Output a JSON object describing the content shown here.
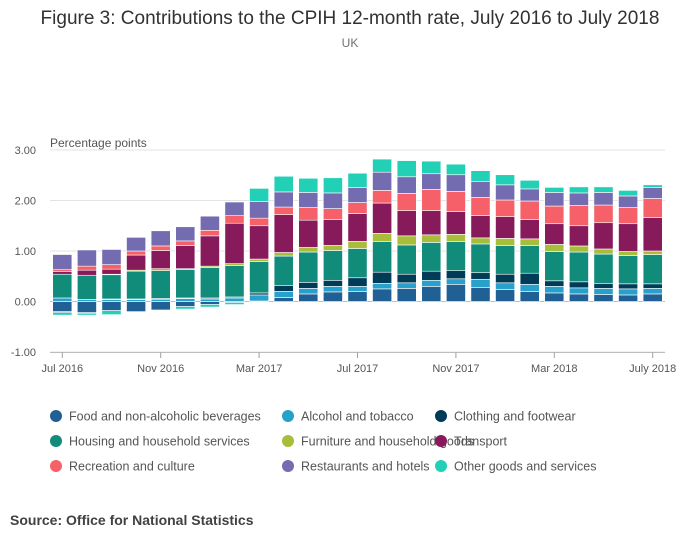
{
  "figure": {
    "title": "Figure 3: Contributions to the CPIH 12-month rate, July 2016 to July 2018",
    "subtitle": "UK",
    "source": "Source: Office for National Statistics"
  },
  "chart_data": {
    "type": "bar",
    "stacked": true,
    "title": "Figure 3: Contributions to the CPIH 12-month rate, July 2016 to July 2018",
    "subtitle": "UK",
    "ylabel": "Percentage points",
    "ylim": [
      -1.0,
      3.0
    ],
    "yticks": [
      "3.00",
      "2.00",
      "1.00",
      "0.00",
      "-1.00"
    ],
    "ytick_values": [
      3,
      2,
      1,
      0,
      -1
    ],
    "grid": true,
    "legend_position": "bottom",
    "x_tick_labels": [
      {
        "label": "Jul 2016",
        "index": 0
      },
      {
        "label": "Nov 2016",
        "index": 4
      },
      {
        "label": "Mar 2017",
        "index": 8
      },
      {
        "label": "Jul 2017",
        "index": 12
      },
      {
        "label": "Nov 2017",
        "index": 16
      },
      {
        "label": "Mar 2018",
        "index": 20
      },
      {
        "label": "July 2018",
        "index": 24
      }
    ],
    "categories": [
      "Jul 2016",
      "Aug 2016",
      "Sep 2016",
      "Oct 2016",
      "Nov 2016",
      "Dec 2016",
      "Jan 2017",
      "Feb 2017",
      "Mar 2017",
      "Apr 2017",
      "May 2017",
      "Jun 2017",
      "Jul 2017",
      "Aug 2017",
      "Sep 2017",
      "Oct 2017",
      "Nov 2017",
      "Dec 2017",
      "Jan 2018",
      "Feb 2018",
      "Mar 2018",
      "Apr 2018",
      "May 2018",
      "Jun 2018",
      "Jul 2018"
    ],
    "series": [
      {
        "name": "Food and non-alcoholic beverages",
        "color": "#206095",
        "values": [
          -0.2,
          -0.22,
          -0.18,
          -0.2,
          -0.17,
          -0.1,
          -0.06,
          -0.02,
          0.01,
          0.08,
          0.15,
          0.19,
          0.2,
          0.25,
          0.26,
          0.3,
          0.34,
          0.28,
          0.24,
          0.2,
          0.17,
          0.15,
          0.14,
          0.13,
          0.15
        ]
      },
      {
        "name": "Alcohol and tobacco",
        "color": "#27a0cc",
        "values": [
          0.07,
          0.04,
          0.04,
          0.04,
          0.04,
          0.06,
          0.05,
          0.07,
          0.12,
          0.12,
          0.11,
          0.11,
          0.1,
          0.11,
          0.11,
          0.12,
          0.11,
          0.16,
          0.13,
          0.14,
          0.13,
          0.12,
          0.12,
          0.12,
          0.11
        ]
      },
      {
        "name": "Clothing and footwear",
        "color": "#003c57",
        "values": [
          -0.02,
          -0.02,
          0.01,
          0.01,
          0.02,
          0.01,
          0.02,
          0.02,
          0.04,
          0.12,
          0.12,
          0.12,
          0.17,
          0.22,
          0.17,
          0.18,
          0.16,
          0.13,
          0.17,
          0.22,
          0.11,
          0.12,
          0.1,
          0.1,
          0.09
        ]
      },
      {
        "name": "Housing and household services",
        "color": "#118c7b",
        "values": [
          0.47,
          0.48,
          0.48,
          0.55,
          0.55,
          0.56,
          0.6,
          0.62,
          0.62,
          0.58,
          0.6,
          0.59,
          0.58,
          0.61,
          0.58,
          0.57,
          0.58,
          0.57,
          0.57,
          0.55,
          0.58,
          0.59,
          0.58,
          0.56,
          0.58
        ]
      },
      {
        "name": "Furniture and household goods",
        "color": "#a8bd3a",
        "values": [
          0.0,
          0.0,
          0.01,
          0.02,
          0.04,
          0.02,
          0.03,
          0.04,
          0.05,
          0.07,
          0.09,
          0.1,
          0.14,
          0.16,
          0.18,
          0.15,
          0.14,
          0.12,
          0.14,
          0.13,
          0.14,
          0.12,
          0.1,
          0.08,
          0.07
        ]
      },
      {
        "name": "Transport",
        "color": "#871a5b",
        "values": [
          0.05,
          0.1,
          0.1,
          0.3,
          0.36,
          0.46,
          0.6,
          0.8,
          0.66,
          0.75,
          0.54,
          0.51,
          0.55,
          0.6,
          0.5,
          0.48,
          0.45,
          0.44,
          0.43,
          0.38,
          0.41,
          0.4,
          0.52,
          0.55,
          0.66
        ]
      },
      {
        "name": "Recreation and culture",
        "color": "#f66068",
        "values": [
          0.04,
          0.08,
          0.09,
          0.08,
          0.09,
          0.09,
          0.11,
          0.15,
          0.15,
          0.15,
          0.25,
          0.22,
          0.22,
          0.25,
          0.34,
          0.42,
          0.4,
          0.36,
          0.33,
          0.37,
          0.35,
          0.4,
          0.35,
          0.32,
          0.38
        ]
      },
      {
        "name": "Restaurants and hotels",
        "color": "#746cb1",
        "values": [
          0.3,
          0.32,
          0.3,
          0.27,
          0.3,
          0.28,
          0.28,
          0.27,
          0.33,
          0.3,
          0.3,
          0.31,
          0.3,
          0.36,
          0.33,
          0.31,
          0.33,
          0.32,
          0.3,
          0.24,
          0.27,
          0.25,
          0.25,
          0.23,
          0.22
        ]
      },
      {
        "name": "Other goods and services",
        "color": "#22d0b6",
        "values": [
          -0.05,
          -0.03,
          -0.08,
          0.0,
          -0.01,
          -0.05,
          -0.05,
          -0.04,
          0.26,
          0.31,
          0.28,
          0.3,
          0.28,
          0.26,
          0.32,
          0.25,
          0.21,
          0.21,
          0.2,
          0.17,
          0.1,
          0.12,
          0.11,
          0.11,
          0.05
        ]
      }
    ]
  }
}
